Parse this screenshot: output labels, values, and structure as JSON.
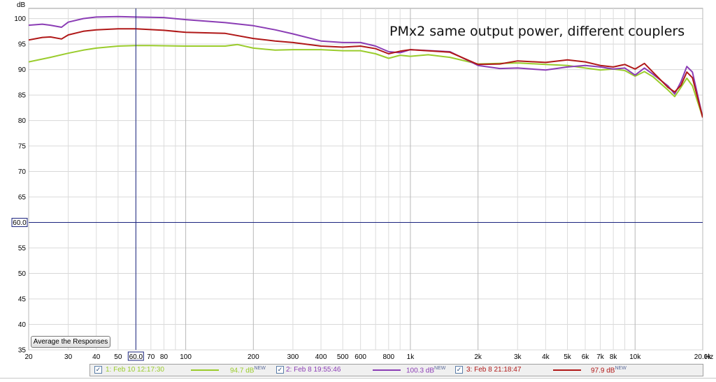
{
  "chart_data": {
    "type": "line",
    "title": "PMx2 same output power, different couplers",
    "ylabel": "dB",
    "xunit": "Hz",
    "xscale": "log",
    "xlim": [
      20,
      20000
    ],
    "ylim": [
      35,
      102
    ],
    "grid": true,
    "yticks": [
      35,
      40,
      45,
      50,
      55,
      60,
      65,
      70,
      75,
      80,
      85,
      90,
      95,
      100
    ],
    "xtick_values": [
      20,
      30,
      40,
      50,
      60,
      70,
      80,
      100,
      200,
      300,
      400,
      500,
      600,
      800,
      1000,
      2000,
      3000,
      4000,
      5000,
      6000,
      7000,
      8000,
      10000,
      20000
    ],
    "xtick_labels": [
      "20",
      "30",
      "40",
      "50",
      "60.0",
      "70",
      "80",
      "100",
      "200",
      "300",
      "400",
      "500",
      "600",
      "800",
      "1k",
      "2k",
      "3k",
      "4k",
      "5k",
      "6k",
      "7k",
      "8k",
      "10k",
      "20.0k"
    ],
    "cursor": {
      "x": 60,
      "y": 60,
      "x_label": "60.0",
      "y_label": "60.0"
    },
    "series": [
      {
        "name": "1: Feb 10 12:17:30",
        "level": "94.7 dB",
        "badge": "NEW",
        "color": "#9acc2c",
        "points": [
          [
            20,
            91.5
          ],
          [
            25,
            92.4
          ],
          [
            30,
            93.2
          ],
          [
            35,
            93.8
          ],
          [
            40,
            94.2
          ],
          [
            50,
            94.6
          ],
          [
            60,
            94.7
          ],
          [
            70,
            94.7
          ],
          [
            100,
            94.6
          ],
          [
            150,
            94.6
          ],
          [
            170,
            94.9
          ],
          [
            200,
            94.2
          ],
          [
            250,
            93.8
          ],
          [
            300,
            93.9
          ],
          [
            400,
            93.9
          ],
          [
            500,
            93.7
          ],
          [
            600,
            93.7
          ],
          [
            700,
            93.1
          ],
          [
            800,
            92.2
          ],
          [
            900,
            92.8
          ],
          [
            1000,
            92.6
          ],
          [
            1200,
            92.9
          ],
          [
            1500,
            92.4
          ],
          [
            2000,
            91.1
          ],
          [
            2500,
            91.2
          ],
          [
            3000,
            91.3
          ],
          [
            4000,
            91.0
          ],
          [
            5000,
            90.8
          ],
          [
            6000,
            90.3
          ],
          [
            7000,
            89.9
          ],
          [
            8000,
            90.1
          ],
          [
            9000,
            89.8
          ],
          [
            10000,
            88.7
          ],
          [
            11000,
            89.6
          ],
          [
            12000,
            88.6
          ],
          [
            14000,
            86.0
          ],
          [
            15000,
            84.7
          ],
          [
            16000,
            86.5
          ],
          [
            17000,
            88.3
          ],
          [
            18000,
            86.8
          ],
          [
            20000,
            80.6
          ]
        ]
      },
      {
        "name": "2: Feb 8 19:55:46",
        "level": "100.3 dB",
        "badge": "NEW",
        "color": "#8b3db5",
        "points": [
          [
            20,
            98.7
          ],
          [
            23,
            98.9
          ],
          [
            25,
            98.7
          ],
          [
            28,
            98.3
          ],
          [
            30,
            99.3
          ],
          [
            35,
            100.0
          ],
          [
            40,
            100.3
          ],
          [
            50,
            100.4
          ],
          [
            60,
            100.3
          ],
          [
            80,
            100.2
          ],
          [
            100,
            99.8
          ],
          [
            150,
            99.2
          ],
          [
            200,
            98.6
          ],
          [
            250,
            97.8
          ],
          [
            300,
            97.0
          ],
          [
            400,
            95.6
          ],
          [
            500,
            95.3
          ],
          [
            600,
            95.3
          ],
          [
            700,
            94.6
          ],
          [
            800,
            93.5
          ],
          [
            900,
            93.3
          ],
          [
            1000,
            93.9
          ],
          [
            1500,
            93.5
          ],
          [
            2000,
            90.8
          ],
          [
            2500,
            90.2
          ],
          [
            3000,
            90.3
          ],
          [
            4000,
            89.9
          ],
          [
            5000,
            90.5
          ],
          [
            6000,
            90.8
          ],
          [
            7000,
            90.5
          ],
          [
            8000,
            90.1
          ],
          [
            9000,
            90.3
          ],
          [
            10000,
            88.9
          ],
          [
            11000,
            90.3
          ],
          [
            12000,
            89.1
          ],
          [
            14000,
            86.8
          ],
          [
            15000,
            85.2
          ],
          [
            16000,
            87.6
          ],
          [
            17000,
            90.6
          ],
          [
            18000,
            89.5
          ],
          [
            20000,
            80.6
          ]
        ]
      },
      {
        "name": "3: Feb 8 21:18:47",
        "level": "97.9 dB",
        "badge": "NEW",
        "color": "#b01818",
        "points": [
          [
            20,
            95.8
          ],
          [
            23,
            96.3
          ],
          [
            25,
            96.4
          ],
          [
            28,
            96.0
          ],
          [
            30,
            96.8
          ],
          [
            35,
            97.5
          ],
          [
            40,
            97.8
          ],
          [
            50,
            98.0
          ],
          [
            60,
            98.0
          ],
          [
            80,
            97.7
          ],
          [
            100,
            97.3
          ],
          [
            150,
            97.1
          ],
          [
            200,
            96.1
          ],
          [
            250,
            95.6
          ],
          [
            300,
            95.3
          ],
          [
            400,
            94.6
          ],
          [
            500,
            94.4
          ],
          [
            600,
            94.6
          ],
          [
            700,
            94.1
          ],
          [
            800,
            93.1
          ],
          [
            900,
            93.6
          ],
          [
            1000,
            93.9
          ],
          [
            1500,
            93.4
          ],
          [
            2000,
            91.0
          ],
          [
            2500,
            91.1
          ],
          [
            3000,
            91.7
          ],
          [
            4000,
            91.4
          ],
          [
            5000,
            91.9
          ],
          [
            6000,
            91.5
          ],
          [
            7000,
            90.8
          ],
          [
            8000,
            90.5
          ],
          [
            9000,
            91.0
          ],
          [
            10000,
            90.1
          ],
          [
            11000,
            91.2
          ],
          [
            12000,
            89.5
          ],
          [
            14000,
            86.5
          ],
          [
            15000,
            85.6
          ],
          [
            16000,
            86.9
          ],
          [
            17000,
            89.5
          ],
          [
            18000,
            88.4
          ],
          [
            20000,
            80.6
          ]
        ]
      }
    ]
  },
  "controls": {
    "average_button_label": "Average the Responses",
    "check_mark": "✓"
  }
}
